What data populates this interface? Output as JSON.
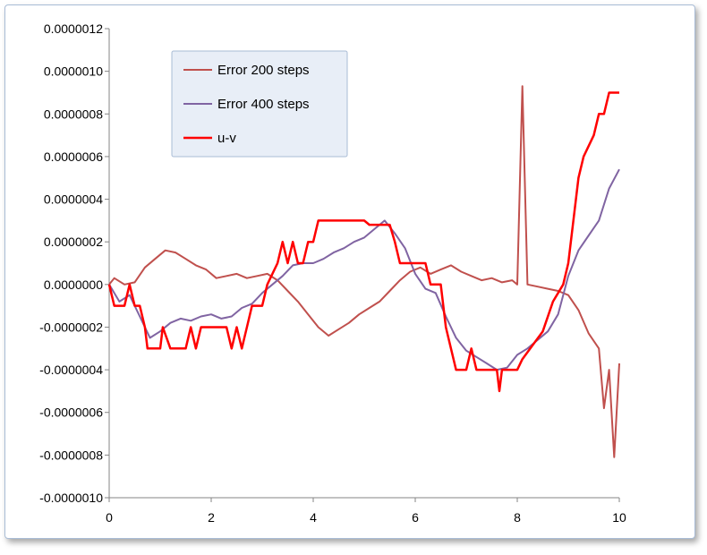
{
  "chart_data": {
    "type": "line",
    "title": "",
    "xlabel": "",
    "ylabel": "",
    "xlim": [
      0,
      10
    ],
    "ylim": [
      -1e-06,
      1.2e-06
    ],
    "x_ticks": [
      "0",
      "2",
      "4",
      "6",
      "8",
      "10"
    ],
    "y_ticks": [
      "0.0000012",
      "0.0000010",
      "0.0000008",
      "0.0000006",
      "0.0000004",
      "0.0000002",
      "0.0000000",
      "-0.0000002",
      "-0.0000004",
      "-0.0000006",
      "-0.0000008",
      "-0.0000010"
    ],
    "grid": false,
    "legend_position": "top-left",
    "series": [
      {
        "name": "Error 200 steps",
        "color": "#c0504d",
        "points": [
          [
            0,
            0.0
          ],
          [
            0.1,
            3e-08
          ],
          [
            0.3,
            0.0
          ],
          [
            0.5,
            1e-08
          ],
          [
            0.7,
            8e-08
          ],
          [
            0.9,
            1.2e-07
          ],
          [
            1.1,
            1.6e-07
          ],
          [
            1.3,
            1.5e-07
          ],
          [
            1.5,
            1.2e-07
          ],
          [
            1.7,
            9e-08
          ],
          [
            1.9,
            7e-08
          ],
          [
            2.1,
            3e-08
          ],
          [
            2.3,
            4e-08
          ],
          [
            2.5,
            5e-08
          ],
          [
            2.7,
            3e-08
          ],
          [
            2.9,
            4e-08
          ],
          [
            3.1,
            5e-08
          ],
          [
            3.3,
            2e-08
          ],
          [
            3.5,
            -3e-08
          ],
          [
            3.7,
            -8e-08
          ],
          [
            3.9,
            -1.4e-07
          ],
          [
            4.1,
            -2e-07
          ],
          [
            4.3,
            -2.4e-07
          ],
          [
            4.5,
            -2.1e-07
          ],
          [
            4.7,
            -1.8e-07
          ],
          [
            4.9,
            -1.4e-07
          ],
          [
            5.1,
            -1.1e-07
          ],
          [
            5.3,
            -8e-08
          ],
          [
            5.5,
            -3e-08
          ],
          [
            5.7,
            2e-08
          ],
          [
            5.9,
            6e-08
          ],
          [
            6.1,
            8e-08
          ],
          [
            6.3,
            5e-08
          ],
          [
            6.5,
            7e-08
          ],
          [
            6.7,
            9e-08
          ],
          [
            6.9,
            6e-08
          ],
          [
            7.1,
            4e-08
          ],
          [
            7.3,
            2e-08
          ],
          [
            7.5,
            3e-08
          ],
          [
            7.7,
            1e-08
          ],
          [
            7.9,
            2e-08
          ],
          [
            8.0,
            0.0
          ],
          [
            8.1,
            9.3e-07
          ],
          [
            8.2,
            0.0
          ],
          [
            8.4,
            -1e-08
          ],
          [
            8.6,
            -2e-08
          ],
          [
            8.8,
            -3e-08
          ],
          [
            9.0,
            -5e-08
          ],
          [
            9.2,
            -1.2e-07
          ],
          [
            9.4,
            -2.3e-07
          ],
          [
            9.6,
            -3e-07
          ],
          [
            9.7,
            -5.8e-07
          ],
          [
            9.8,
            -4e-07
          ],
          [
            9.9,
            -8.1e-07
          ],
          [
            10.0,
            -3.7e-07
          ]
        ]
      },
      {
        "name": "Error 400 steps",
        "color": "#8064a2",
        "points": [
          [
            0,
            0.0
          ],
          [
            0.2,
            -8e-08
          ],
          [
            0.4,
            -5e-08
          ],
          [
            0.6,
            -1.5e-07
          ],
          [
            0.8,
            -2.5e-07
          ],
          [
            1.0,
            -2.2e-07
          ],
          [
            1.2,
            -1.8e-07
          ],
          [
            1.4,
            -1.6e-07
          ],
          [
            1.6,
            -1.7e-07
          ],
          [
            1.8,
            -1.5e-07
          ],
          [
            2.0,
            -1.4e-07
          ],
          [
            2.2,
            -1.6e-07
          ],
          [
            2.4,
            -1.5e-07
          ],
          [
            2.6,
            -1.1e-07
          ],
          [
            2.8,
            -9e-08
          ],
          [
            3.0,
            -4e-08
          ],
          [
            3.2,
            0.0
          ],
          [
            3.4,
            4e-08
          ],
          [
            3.6,
            9e-08
          ],
          [
            3.8,
            1e-07
          ],
          [
            4.0,
            1e-07
          ],
          [
            4.2,
            1.2e-07
          ],
          [
            4.4,
            1.5e-07
          ],
          [
            4.6,
            1.7e-07
          ],
          [
            4.8,
            2e-07
          ],
          [
            5.0,
            2.2e-07
          ],
          [
            5.2,
            2.6e-07
          ],
          [
            5.4,
            3e-07
          ],
          [
            5.6,
            2.4e-07
          ],
          [
            5.8,
            1.7e-07
          ],
          [
            6.0,
            5e-08
          ],
          [
            6.2,
            -2e-08
          ],
          [
            6.4,
            -4e-08
          ],
          [
            6.6,
            -1.5e-07
          ],
          [
            6.8,
            -2.5e-07
          ],
          [
            7.0,
            -3.1e-07
          ],
          [
            7.2,
            -3.4e-07
          ],
          [
            7.4,
            -3.7e-07
          ],
          [
            7.6,
            -4e-07
          ],
          [
            7.8,
            -3.9e-07
          ],
          [
            8.0,
            -3.3e-07
          ],
          [
            8.2,
            -3e-07
          ],
          [
            8.4,
            -2.6e-07
          ],
          [
            8.6,
            -2.2e-07
          ],
          [
            8.8,
            -1.4e-07
          ],
          [
            9.0,
            4e-08
          ],
          [
            9.2,
            1.6e-07
          ],
          [
            9.4,
            2.3e-07
          ],
          [
            9.6,
            3e-07
          ],
          [
            9.8,
            4.5e-07
          ],
          [
            10.0,
            5.4e-07
          ]
        ]
      },
      {
        "name": "u-v",
        "color": "#ff0000",
        "points": [
          [
            0,
            0.0
          ],
          [
            0.1,
            -1e-07
          ],
          [
            0.3,
            -1e-07
          ],
          [
            0.4,
            0.0
          ],
          [
            0.5,
            -1e-07
          ],
          [
            0.6,
            -1e-07
          ],
          [
            0.7,
            -2e-07
          ],
          [
            0.75,
            -3e-07
          ],
          [
            1.0,
            -3e-07
          ],
          [
            1.05,
            -2e-07
          ],
          [
            1.2,
            -3e-07
          ],
          [
            1.5,
            -3e-07
          ],
          [
            1.6,
            -2e-07
          ],
          [
            1.7,
            -3e-07
          ],
          [
            1.8,
            -2e-07
          ],
          [
            2.3,
            -2e-07
          ],
          [
            2.4,
            -3e-07
          ],
          [
            2.5,
            -2e-07
          ],
          [
            2.6,
            -3e-07
          ],
          [
            2.7,
            -2e-07
          ],
          [
            2.8,
            -1e-07
          ],
          [
            3.0,
            -1e-07
          ],
          [
            3.1,
            0.0
          ],
          [
            3.3,
            1e-07
          ],
          [
            3.4,
            2e-07
          ],
          [
            3.5,
            1e-07
          ],
          [
            3.6,
            2e-07
          ],
          [
            3.7,
            1e-07
          ],
          [
            3.8,
            1e-07
          ],
          [
            3.9,
            2e-07
          ],
          [
            4.0,
            2e-07
          ],
          [
            4.1,
            3e-07
          ],
          [
            5.0,
            3e-07
          ],
          [
            5.1,
            2.8e-07
          ],
          [
            5.5,
            2.8e-07
          ],
          [
            5.6,
            2e-07
          ],
          [
            5.7,
            1e-07
          ],
          [
            6.2,
            1e-07
          ],
          [
            6.3,
            0.0
          ],
          [
            6.5,
            0.0
          ],
          [
            6.6,
            -2e-07
          ],
          [
            6.7,
            -3e-07
          ],
          [
            6.8,
            -4e-07
          ],
          [
            7.0,
            -4e-07
          ],
          [
            7.1,
            -3e-07
          ],
          [
            7.2,
            -4e-07
          ],
          [
            7.6,
            -4e-07
          ],
          [
            7.65,
            -5e-07
          ],
          [
            7.7,
            -4e-07
          ],
          [
            8.0,
            -4e-07
          ],
          [
            8.1,
            -3.5e-07
          ],
          [
            8.5,
            -2.2e-07
          ],
          [
            8.7,
            -8e-08
          ],
          [
            8.9,
            0.0
          ],
          [
            9.0,
            1e-07
          ],
          [
            9.1,
            3e-07
          ],
          [
            9.2,
            5e-07
          ],
          [
            9.3,
            6e-07
          ],
          [
            9.5,
            7e-07
          ],
          [
            9.6,
            8e-07
          ],
          [
            9.7,
            8e-07
          ],
          [
            9.8,
            9e-07
          ],
          [
            9.9,
            9e-07
          ],
          [
            10.0,
            9e-07
          ]
        ]
      }
    ]
  }
}
